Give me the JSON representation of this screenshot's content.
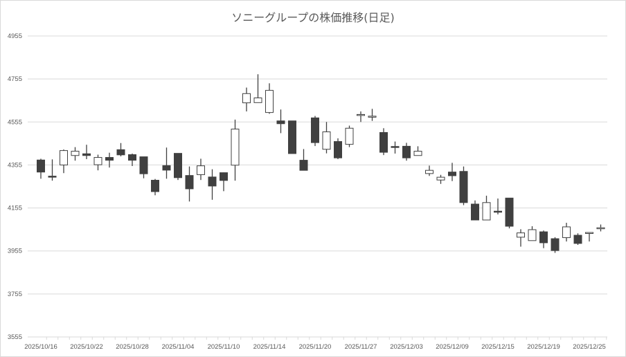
{
  "chart_data": {
    "type": "candlestick",
    "title": "ソニーグループの株価推移(日足)",
    "xlabel": "",
    "ylabel": "",
    "ylim": [
      3555,
      4955
    ],
    "yticks": [
      3555,
      3755,
      3955,
      4155,
      4355,
      4555,
      4755,
      4955
    ],
    "grid": true,
    "legend": "none",
    "colors": {
      "up_fill": "#ffffff",
      "down_fill": "#404040",
      "line": "#404040",
      "grid": "#d9d9d9"
    },
    "xtick_labels": [
      "2025/10/16",
      "2025/10/22",
      "2025/10/28",
      "2025/11/04",
      "2025/11/10",
      "2025/11/14",
      "2025/11/20",
      "2025/11/27",
      "2025/12/03",
      "2025/12/09",
      "2025/12/15",
      "2025/12/19",
      "2025/12/25"
    ],
    "dates": [
      "2025/10/16",
      "2025/10/17",
      "2025/10/20",
      "2025/10/21",
      "2025/10/22",
      "2025/10/23",
      "2025/10/24",
      "2025/10/27",
      "2025/10/28",
      "2025/10/29",
      "2025/10/30",
      "2025/10/31",
      "2025/11/04",
      "2025/11/05",
      "2025/11/06",
      "2025/11/07",
      "2025/11/10",
      "2025/11/11",
      "2025/11/12",
      "2025/11/13",
      "2025/11/14",
      "2025/11/17",
      "2025/11/18",
      "2025/11/19",
      "2025/11/20",
      "2025/11/21",
      "2025/11/25",
      "2025/11/26",
      "2025/11/27",
      "2025/11/28",
      "2025/12/01",
      "2025/12/02",
      "2025/12/03",
      "2025/12/04",
      "2025/12/05",
      "2025/12/08",
      "2025/12/09",
      "2025/12/10",
      "2025/12/11",
      "2025/12/12",
      "2025/12/15",
      "2025/12/16",
      "2025/12/17",
      "2025/12/18",
      "2025/12/19",
      "2025/12/22",
      "2025/12/23",
      "2025/12/24",
      "2025/12/25",
      "2025/12/26"
    ],
    "ohlc": [
      [
        4378,
        4384,
        4291,
        4322
      ],
      [
        4303,
        4381,
        4282,
        4298
      ],
      [
        4355,
        4427,
        4317,
        4422
      ],
      [
        4399,
        4438,
        4375,
        4419
      ],
      [
        4407,
        4449,
        4382,
        4399
      ],
      [
        4356,
        4403,
        4330,
        4390
      ],
      [
        4390,
        4412,
        4343,
        4377
      ],
      [
        4426,
        4457,
        4395,
        4402
      ],
      [
        4403,
        4408,
        4350,
        4377
      ],
      [
        4393,
        4393,
        4293,
        4314
      ],
      [
        4284,
        4290,
        4214,
        4231
      ],
      [
        4352,
        4436,
        4291,
        4331
      ],
      [
        4409,
        4409,
        4285,
        4296
      ],
      [
        4306,
        4348,
        4185,
        4244
      ],
      [
        4310,
        4384,
        4285,
        4351
      ],
      [
        4299,
        4335,
        4193,
        4257
      ],
      [
        4319,
        4320,
        4233,
        4283
      ],
      [
        4354,
        4566,
        4282,
        4522
      ],
      [
        4644,
        4715,
        4604,
        4687
      ],
      [
        4645,
        4777,
        4646,
        4667
      ],
      [
        4599,
        4735,
        4593,
        4702
      ],
      [
        4560,
        4613,
        4503,
        4547
      ],
      [
        4560,
        4560,
        4408,
        4408
      ],
      [
        4377,
        4429,
        4330,
        4330
      ],
      [
        4574,
        4583,
        4443,
        4459
      ],
      [
        4428,
        4555,
        4409,
        4509
      ],
      [
        4464,
        4479,
        4382,
        4388
      ],
      [
        4451,
        4538,
        4438,
        4526
      ],
      [
        4588,
        4604,
        4555,
        4590
      ],
      [
        4580,
        4616,
        4560,
        4582
      ],
      [
        4506,
        4526,
        4401,
        4414
      ],
      [
        4441,
        4464,
        4408,
        4439
      ],
      [
        4442,
        4458,
        4375,
        4388
      ],
      [
        4399,
        4442,
        4399,
        4419
      ],
      [
        4315,
        4352,
        4304,
        4330
      ],
      [
        4285,
        4309,
        4267,
        4298
      ],
      [
        4322,
        4365,
        4280,
        4305
      ],
      [
        4325,
        4348,
        4168,
        4180
      ],
      [
        4173,
        4190,
        4099,
        4099
      ],
      [
        4099,
        4212,
        4099,
        4180
      ],
      [
        4140,
        4199,
        4125,
        4138
      ],
      [
        4201,
        4201,
        4060,
        4070
      ],
      [
        4019,
        4056,
        3975,
        4039
      ],
      [
        4003,
        4070,
        4003,
        4054
      ],
      [
        4044,
        4050,
        3968,
        3993
      ],
      [
        4012,
        4019,
        3946,
        3957
      ],
      [
        4017,
        4086,
        3999,
        4067
      ],
      [
        4028,
        4037,
        3983,
        3990
      ],
      [
        4040,
        4042,
        3999,
        4041
      ],
      [
        4061,
        4078,
        4046,
        4063
      ]
    ]
  }
}
